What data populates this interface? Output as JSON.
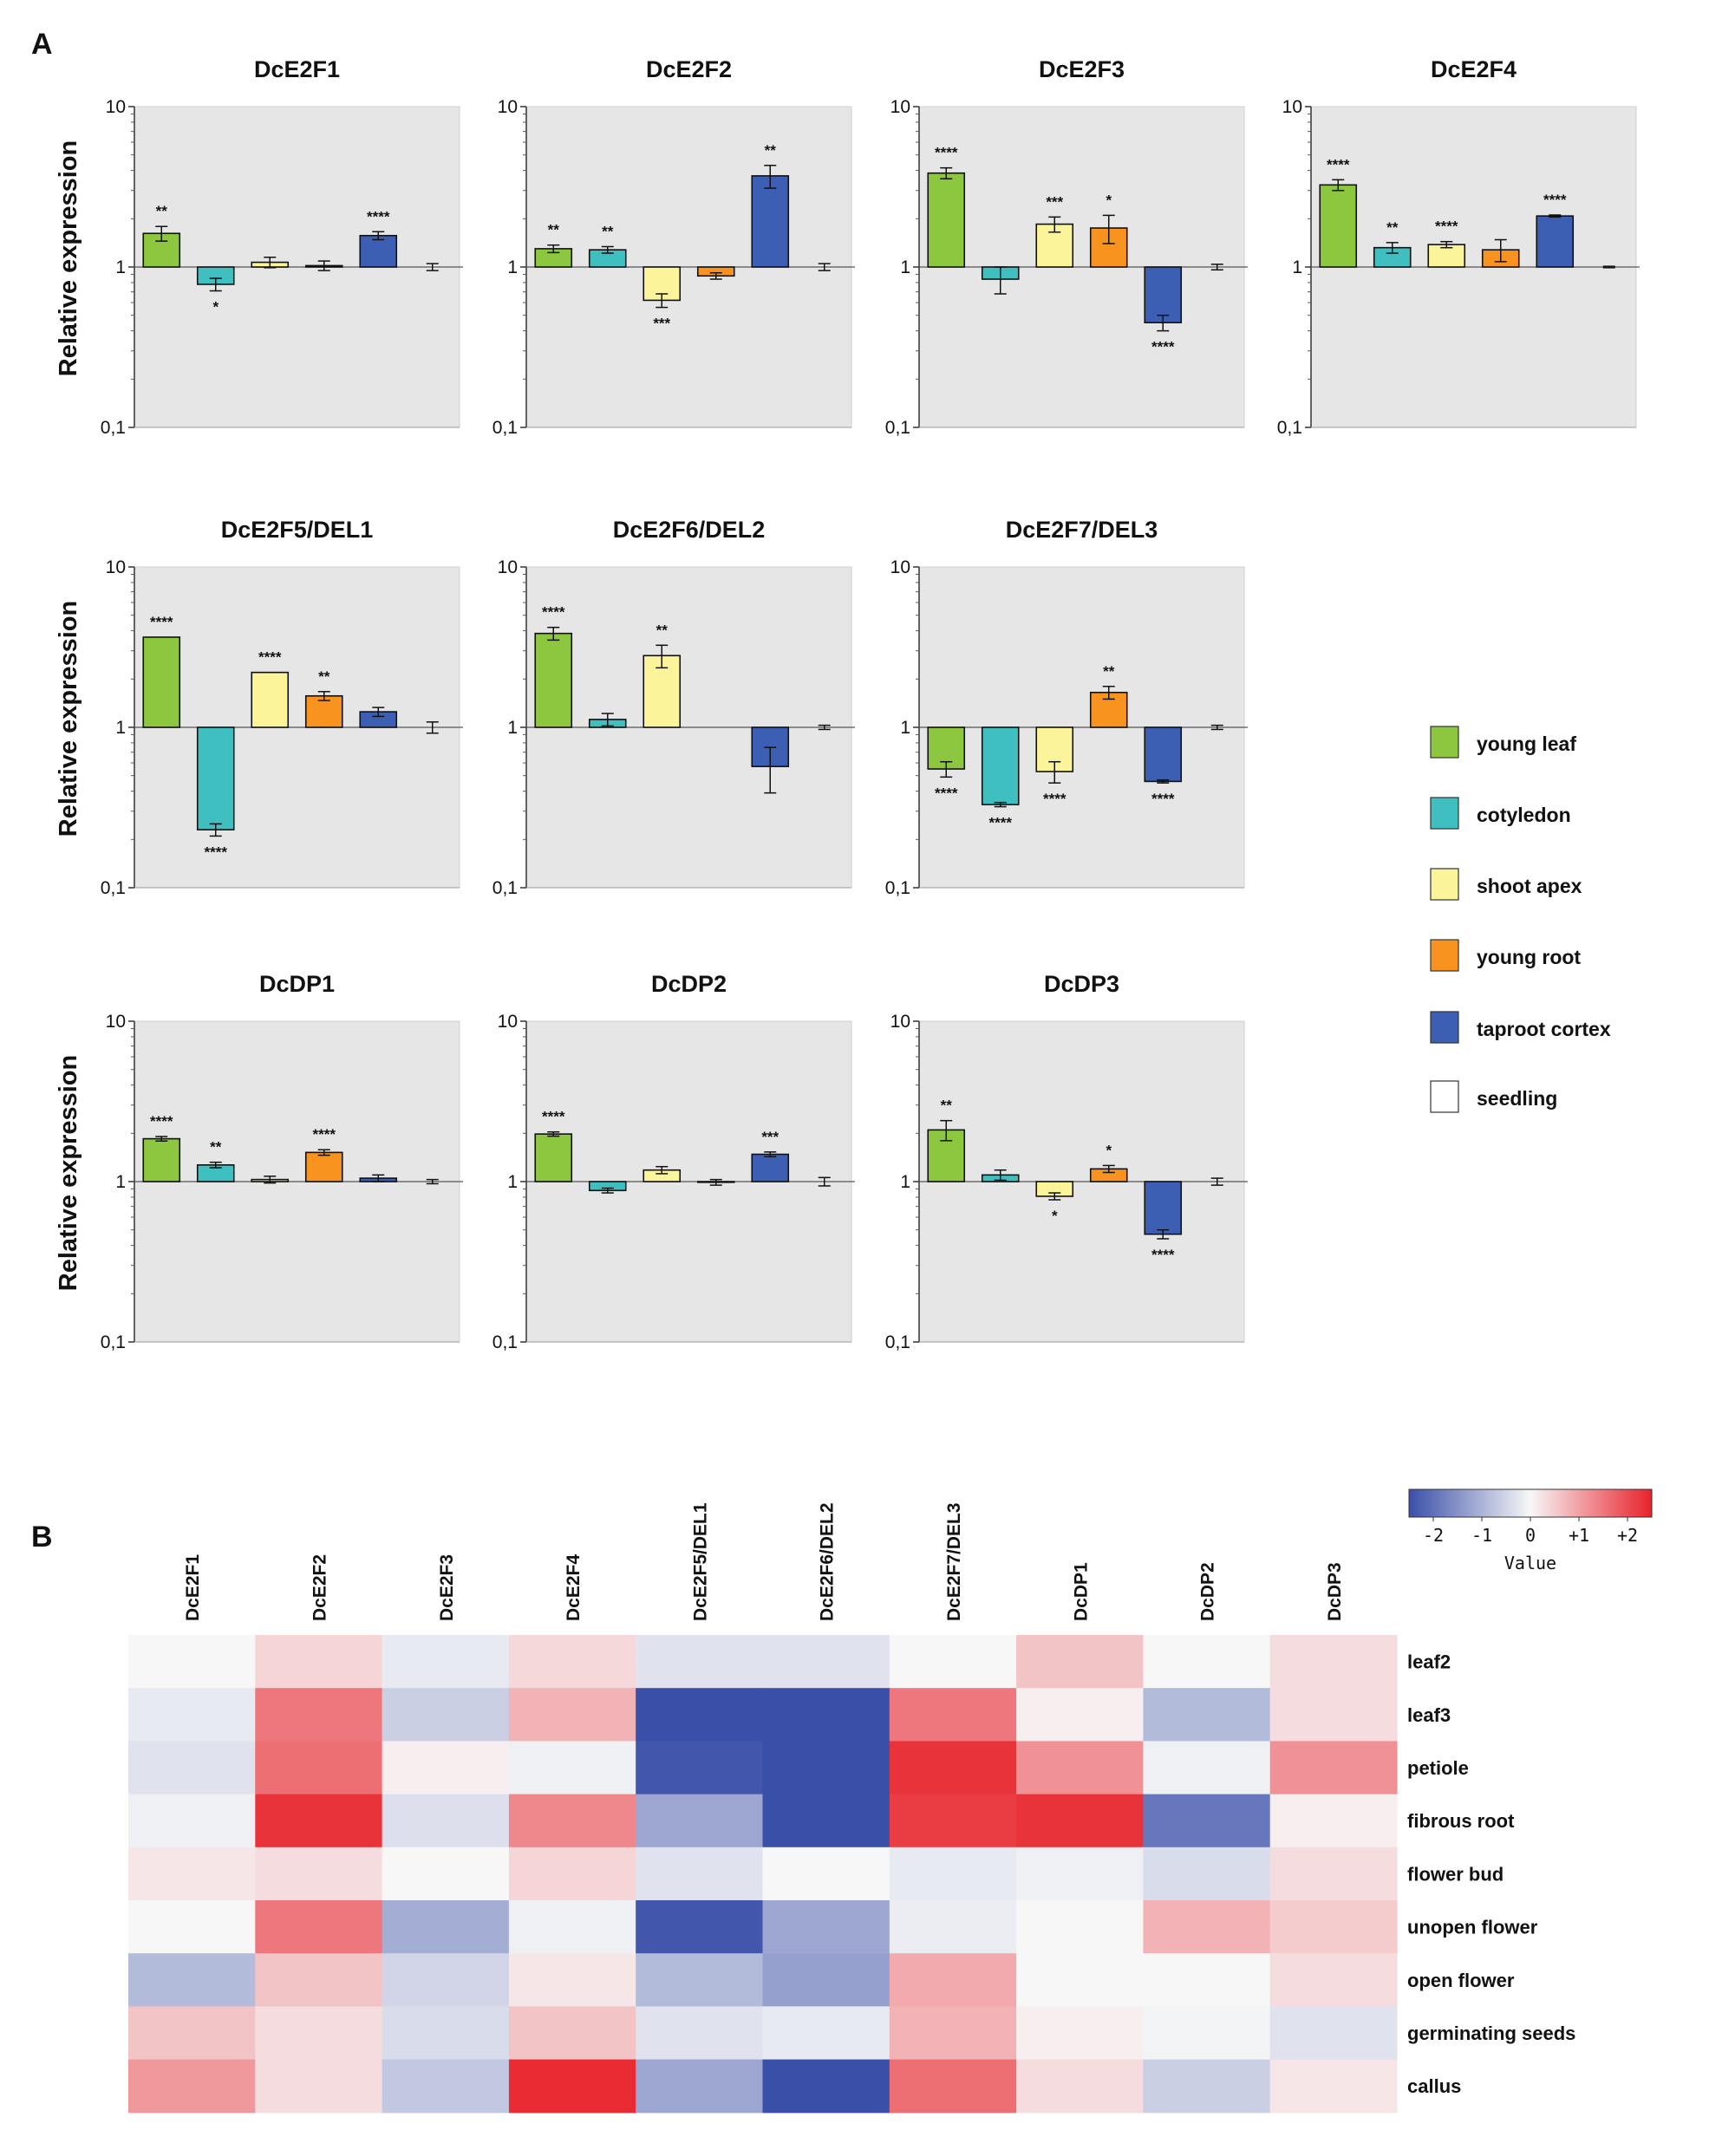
{
  "panel_labels": {
    "a": "A",
    "b": "B"
  },
  "colors": {
    "young_leaf": "#8dc63f",
    "cotyledon": "#3fbfbf",
    "shoot_apex": "#fbf49b",
    "young_root": "#f7931e",
    "taproot_cortex": "#3d5fb3",
    "seedling": "#ffffff",
    "plot_bg": "#e6e6e6",
    "heat_low": "#3a4fa8",
    "heat_mid": "#f7f7f7",
    "heat_high": "#e8222b"
  },
  "chart_data": [
    {
      "type": "bar",
      "title": "DcE2F1",
      "ylabel": "Relative expression",
      "yscale": "log",
      "ylim": [
        0.1,
        10
      ],
      "yticks": [
        "10",
        "1",
        "0,1"
      ],
      "baseline": 1,
      "categories": [
        "young leaf",
        "cotyledon",
        "shoot apex",
        "young root",
        "taproot cortex",
        "seedling"
      ],
      "values": [
        1.62,
        0.78,
        1.07,
        1.02,
        1.57,
        1.0
      ],
      "errors": [
        0.17,
        0.07,
        0.08,
        0.07,
        0.09,
        0.05
      ],
      "significance": [
        "**",
        "*",
        "",
        "",
        "****",
        ""
      ]
    },
    {
      "type": "bar",
      "title": "DcE2F2",
      "ylabel": "",
      "yscale": "log",
      "ylim": [
        0.1,
        10
      ],
      "yticks": [
        "10",
        "1",
        "0,1"
      ],
      "baseline": 1,
      "categories": [
        "young leaf",
        "cotyledon",
        "shoot apex",
        "young root",
        "taproot cortex",
        "seedling"
      ],
      "values": [
        1.3,
        1.28,
        0.62,
        0.88,
        3.7,
        1.0
      ],
      "errors": [
        0.07,
        0.06,
        0.06,
        0.04,
        0.6,
        0.05
      ],
      "significance": [
        "**",
        "**",
        "***",
        "",
        "**",
        ""
      ]
    },
    {
      "type": "bar",
      "title": "DcE2F3",
      "ylabel": "",
      "yscale": "log",
      "ylim": [
        0.1,
        10
      ],
      "yticks": [
        "10",
        "1",
        "0,1"
      ],
      "baseline": 1,
      "categories": [
        "young leaf",
        "cotyledon",
        "shoot apex",
        "young root",
        "taproot cortex",
        "seedling"
      ],
      "values": [
        3.85,
        0.84,
        1.85,
        1.75,
        0.45,
        1.0
      ],
      "errors": [
        0.3,
        0.16,
        0.2,
        0.35,
        0.05,
        0.04
      ],
      "significance": [
        "****",
        "",
        "***",
        "*",
        "****",
        ""
      ]
    },
    {
      "type": "bar",
      "title": "DcE2F4",
      "ylabel": "",
      "yscale": "log",
      "ylim": [
        0.1,
        10
      ],
      "yticks": [
        "10",
        "1",
        "0,1"
      ],
      "baseline": 1,
      "categories": [
        "young leaf",
        "cotyledon",
        "shoot apex",
        "young root",
        "taproot cortex",
        "seedling"
      ],
      "values": [
        3.25,
        1.32,
        1.38,
        1.28,
        2.08,
        1.0
      ],
      "errors": [
        0.25,
        0.1,
        0.06,
        0.2,
        0.03,
        0.01
      ],
      "significance": [
        "****",
        "**",
        "****",
        "",
        "****",
        ""
      ]
    },
    {
      "type": "bar",
      "title": "DcE2F5/DEL1",
      "ylabel": "Relative expression",
      "yscale": "log",
      "ylim": [
        0.1,
        10
      ],
      "yticks": [
        "10",
        "1",
        "0,1"
      ],
      "baseline": 1,
      "categories": [
        "young leaf",
        "cotyledon",
        "shoot apex",
        "young root",
        "taproot cortex",
        "seedling"
      ],
      "values": [
        3.65,
        0.23,
        2.2,
        1.57,
        1.25,
        1.0
      ],
      "errors": [
        0.0,
        0.02,
        0.0,
        0.1,
        0.08,
        0.08
      ],
      "significance": [
        "****",
        "****",
        "****",
        "**",
        "",
        ""
      ]
    },
    {
      "type": "bar",
      "title": "DcE2F6/DEL2",
      "ylabel": "",
      "yscale": "log",
      "ylim": [
        0.1,
        10
      ],
      "yticks": [
        "10",
        "1",
        "0,1"
      ],
      "baseline": 1,
      "categories": [
        "young leaf",
        "cotyledon",
        "shoot apex",
        "young root",
        "taproot cortex",
        "seedling"
      ],
      "values": [
        3.85,
        1.12,
        2.8,
        1.0,
        0.57,
        1.0
      ],
      "errors": [
        0.35,
        0.1,
        0.45,
        0.0,
        0.18,
        0.03
      ],
      "significance": [
        "****",
        "",
        "**",
        "",
        "",
        ""
      ]
    },
    {
      "type": "bar",
      "title": "DcE2F7/DEL3",
      "ylabel": "",
      "yscale": "log",
      "ylim": [
        0.1,
        10
      ],
      "yticks": [
        "10",
        "1",
        "0,1"
      ],
      "baseline": 1,
      "categories": [
        "young leaf",
        "cotyledon",
        "shoot apex",
        "young root",
        "taproot cortex",
        "seedling"
      ],
      "values": [
        0.55,
        0.33,
        0.53,
        1.65,
        0.46,
        1.0
      ],
      "errors": [
        0.06,
        0.01,
        0.08,
        0.15,
        0.01,
        0.03
      ],
      "significance": [
        "****",
        "****",
        "****",
        "**",
        "****",
        ""
      ]
    },
    {
      "type": "bar",
      "title": "DcDP1",
      "ylabel": "Relative expression",
      "yscale": "log",
      "ylim": [
        0.1,
        10
      ],
      "yticks": [
        "10",
        "1",
        "0,1"
      ],
      "baseline": 1,
      "categories": [
        "young leaf",
        "cotyledon",
        "shoot apex",
        "young root",
        "taproot cortex",
        "seedling"
      ],
      "values": [
        1.85,
        1.27,
        1.03,
        1.52,
        1.05,
        1.0
      ],
      "errors": [
        0.06,
        0.05,
        0.05,
        0.06,
        0.05,
        0.03
      ],
      "significance": [
        "****",
        "**",
        "",
        "****",
        "",
        ""
      ]
    },
    {
      "type": "bar",
      "title": "DcDP2",
      "ylabel": "",
      "yscale": "log",
      "ylim": [
        0.1,
        10
      ],
      "yticks": [
        "10",
        "1",
        "0,1"
      ],
      "baseline": 1,
      "categories": [
        "young leaf",
        "cotyledon",
        "shoot apex",
        "young root",
        "taproot cortex",
        "seedling"
      ],
      "values": [
        1.98,
        0.88,
        1.18,
        0.99,
        1.48,
        1.0
      ],
      "errors": [
        0.06,
        0.03,
        0.06,
        0.04,
        0.05,
        0.06
      ],
      "significance": [
        "****",
        "",
        "",
        "",
        "***",
        ""
      ]
    },
    {
      "type": "bar",
      "title": "DcDP3",
      "ylabel": "",
      "yscale": "log",
      "ylim": [
        0.1,
        10
      ],
      "yticks": [
        "10",
        "1",
        "0,1"
      ],
      "baseline": 1,
      "categories": [
        "young leaf",
        "cotyledon",
        "shoot apex",
        "young root",
        "taproot cortex",
        "seedling"
      ],
      "values": [
        2.1,
        1.1,
        0.81,
        1.2,
        0.47,
        1.0
      ],
      "errors": [
        0.3,
        0.08,
        0.04,
        0.06,
        0.03,
        0.05
      ],
      "significance": [
        "**",
        "",
        "*",
        "*",
        "****",
        ""
      ]
    },
    {
      "type": "heatmap",
      "columns": [
        "DcE2F1",
        "DcE2F2",
        "DcE2F3",
        "DcE2F4",
        "DcE2F5/DEL1",
        "DcE2F6/DEL2",
        "DcE2F7/DEL3",
        "DcDP1",
        "DcDP2",
        "DcDP3"
      ],
      "rows": [
        "leaf2",
        "leaf3",
        "petiole",
        "fibrous root",
        "flower bud",
        "unopen flower",
        "open flower",
        "germinating seeds",
        "callus"
      ],
      "values": [
        [
          0.0,
          0.4,
          -0.2,
          0.35,
          -0.3,
          -0.3,
          0.0,
          0.6,
          0.0,
          0.3
        ],
        [
          -0.2,
          1.5,
          -0.6,
          0.8,
          -2.5,
          -2.5,
          1.5,
          0.1,
          -0.9,
          0.3
        ],
        [
          -0.3,
          1.6,
          0.1,
          -0.1,
          -2.4,
          -2.5,
          2.3,
          1.2,
          -0.1,
          1.2
        ],
        [
          -0.1,
          2.3,
          -0.35,
          1.3,
          -1.2,
          -2.5,
          2.2,
          2.3,
          -1.9,
          0.1
        ],
        [
          0.2,
          0.3,
          0.0,
          0.4,
          -0.3,
          0.0,
          -0.2,
          -0.1,
          -0.4,
          0.3
        ],
        [
          0.0,
          1.5,
          -1.1,
          -0.1,
          -2.4,
          -1.2,
          -0.15,
          0.0,
          0.8,
          0.5
        ],
        [
          -0.9,
          0.6,
          -0.5,
          0.2,
          -0.9,
          -1.3,
          0.9,
          0.0,
          0.0,
          0.3
        ],
        [
          0.6,
          0.3,
          -0.4,
          0.6,
          -0.3,
          -0.2,
          0.8,
          0.1,
          -0.05,
          -0.3
        ],
        [
          1.1,
          0.3,
          -0.7,
          2.4,
          -1.2,
          -2.5,
          1.6,
          0.3,
          -0.6,
          0.2
        ]
      ],
      "colorbar": {
        "title": "Value",
        "range": [
          -2.5,
          2.5
        ],
        "ticks": [
          "-2",
          "-1",
          "0",
          "+1",
          "+2"
        ],
        "tick_values": [
          -2,
          -1,
          0,
          1,
          2
        ]
      }
    }
  ],
  "legend": [
    {
      "label": "young leaf",
      "color_key": "young_leaf"
    },
    {
      "label": "cotyledon",
      "color_key": "cotyledon"
    },
    {
      "label": "shoot apex",
      "color_key": "shoot_apex"
    },
    {
      "label": "young root",
      "color_key": "young_root"
    },
    {
      "label": "taproot cortex",
      "color_key": "taproot_cortex"
    },
    {
      "label": "seedling",
      "color_key": "seedling"
    }
  ]
}
